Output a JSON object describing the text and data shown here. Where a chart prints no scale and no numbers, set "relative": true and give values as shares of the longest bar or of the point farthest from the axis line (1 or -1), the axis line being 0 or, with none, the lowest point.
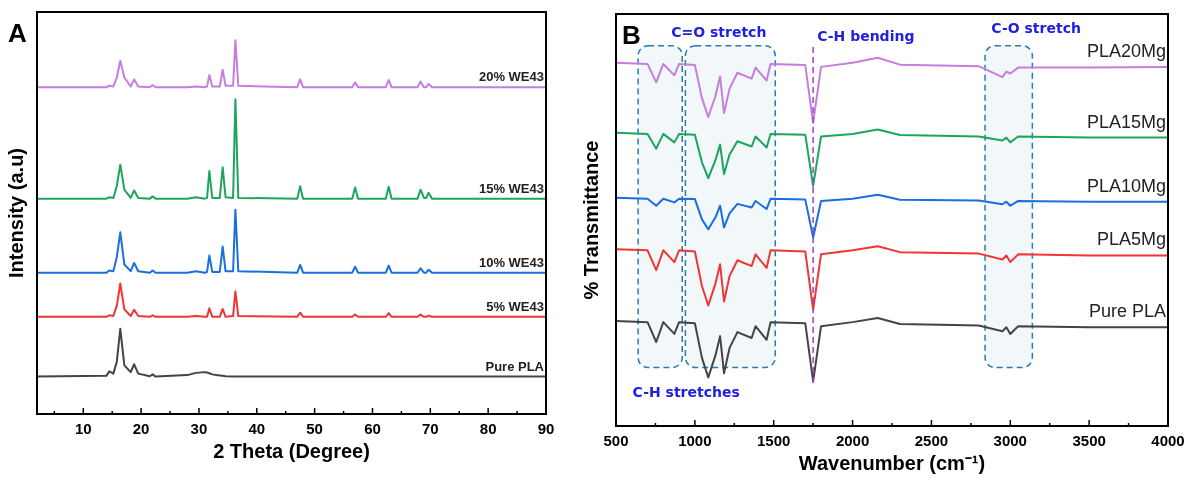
{
  "chart_data": [
    {
      "type": "line",
      "title": "A",
      "xlabel": "2 Theta (Degree)",
      "ylabel": "Intensity (a.u)",
      "relative": true,
      "tick_labels": "x",
      "grid": false,
      "legend": false,
      "xlim": [
        2,
        90
      ],
      "xticks": [
        {
          "value": 5,
          "label": null
        },
        10,
        {
          "value": 15,
          "label": null
        },
        20,
        {
          "value": 25,
          "label": null
        },
        30,
        {
          "value": 35,
          "label": null
        },
        40,
        {
          "value": 45,
          "label": null
        },
        50,
        {
          "value": 55,
          "label": null
        },
        60,
        {
          "value": 65,
          "label": null
        },
        70,
        {
          "value": 75,
          "label": null
        },
        80,
        {
          "value": 85,
          "label": null
        },
        90
      ],
      "x": [
        2,
        14,
        14.5,
        15.2,
        15.8,
        16.4,
        17.1,
        18.2,
        18.8,
        19.5,
        21.5,
        22,
        22.5,
        28,
        29.5,
        31,
        31.4,
        31.8,
        32.3,
        33.6,
        34.1,
        34.6,
        35.9,
        36.3,
        36.8,
        47,
        47.5,
        48,
        56.5,
        57,
        57.5,
        62.3,
        62.8,
        63.3,
        67.8,
        68.3,
        68.9,
        69.3,
        69.7,
        70.3,
        90
      ],
      "series": [
        {
          "name": "20% WE43",
          "color": "#c77dde",
          "values": [
            0.874,
            0.874,
            0.878,
            0.876,
            0.9,
            0.945,
            0.9,
            0.876,
            0.895,
            0.876,
            0.874,
            0.88,
            0.874,
            0.874,
            0.876,
            0.874,
            0.876,
            0.907,
            0.876,
            0.876,
            0.921,
            0.878,
            0.878,
            1,
            0.878,
            0.874,
            0.895,
            0.874,
            0.874,
            0.887,
            0.874,
            0.874,
            0.893,
            0.874,
            0.874,
            0.889,
            0.874,
            0.874,
            0.883,
            0.874,
            0.874
          ]
        },
        {
          "name": "15% WE43",
          "color": "#1ca55c",
          "values": [
            0.576,
            0.576,
            0.58,
            0.578,
            0.61,
            0.667,
            0.6,
            0.578,
            0.598,
            0.578,
            0.576,
            0.582,
            0.576,
            0.576,
            0.58,
            0.576,
            0.578,
            0.65,
            0.578,
            0.578,
            0.66,
            0.58,
            0.578,
            0.842,
            0.578,
            0.576,
            0.609,
            0.576,
            0.576,
            0.606,
            0.576,
            0.576,
            0.608,
            0.576,
            0.576,
            0.6,
            0.578,
            0.578,
            0.592,
            0.576,
            0.576
          ]
        },
        {
          "name": "10% WE43",
          "color": "#1a6ee0",
          "values": [
            0.378,
            0.378,
            0.384,
            0.382,
            0.42,
            0.486,
            0.4,
            0.382,
            0.404,
            0.382,
            0.378,
            0.384,
            0.378,
            0.378,
            0.382,
            0.378,
            0.38,
            0.424,
            0.38,
            0.38,
            0.448,
            0.382,
            0.382,
            0.546,
            0.382,
            0.378,
            0.399,
            0.378,
            0.378,
            0.394,
            0.378,
            0.378,
            0.397,
            0.378,
            0.378,
            0.39,
            0.378,
            0.378,
            0.386,
            0.378,
            0.378
          ]
        },
        {
          "name": "5% WE43",
          "color": "#f03535",
          "values": [
            0.26,
            0.26,
            0.264,
            0.262,
            0.29,
            0.349,
            0.28,
            0.262,
            0.279,
            0.262,
            0.26,
            0.264,
            0.26,
            0.26,
            0.262,
            0.26,
            0.26,
            0.283,
            0.26,
            0.26,
            0.281,
            0.26,
            0.262,
            0.328,
            0.262,
            0.26,
            0.271,
            0.26,
            0.26,
            0.266,
            0.26,
            0.26,
            0.27,
            0.26,
            0.26,
            0.266,
            0.26,
            0.26,
            0.263,
            0.26,
            0.26
          ]
        },
        {
          "name": "Pure PLA",
          "color": "#444444",
          "values": [
            0.1,
            0.102,
            0.114,
            0.108,
            0.14,
            0.228,
            0.13,
            0.112,
            0.133,
            0.108,
            0.101,
            0.106,
            0.1,
            0.104,
            0.11,
            0.112,
            0.111,
            0.109,
            0.106,
            0.103,
            0.102,
            0.101,
            0.1,
            0.1,
            0.1,
            0.1,
            0.1,
            0.1,
            0.1,
            0.1,
            0.1,
            0.1,
            0.1,
            0.1,
            0.1,
            0.1,
            0.1,
            0.1,
            0.1,
            0.1,
            0.1
          ]
        }
      ]
    },
    {
      "type": "line",
      "title": "B",
      "xlabel": "Wavenumber (cm⁻¹)",
      "ylabel": "% Transmittance",
      "relative": true,
      "tick_labels": "x",
      "grid": false,
      "legend": false,
      "xlim": [
        500,
        4000
      ],
      "xticks": [
        500,
        {
          "value": 750,
          "label": null
        },
        1000,
        {
          "value": 1250,
          "label": null
        },
        1500,
        {
          "value": 1750,
          "label": null
        },
        2000,
        {
          "value": 2250,
          "label": null
        },
        2500,
        {
          "value": 2750,
          "label": null
        },
        3000,
        {
          "value": 3250,
          "label": null
        },
        3500,
        {
          "value": 3750,
          "label": null
        },
        4000
      ],
      "x": [
        500,
        700,
        755,
        800,
        870,
        900,
        1000,
        1045,
        1085,
        1130,
        1160,
        1185,
        1220,
        1270,
        1360,
        1385,
        1455,
        1480,
        1700,
        1750,
        1800,
        2000,
        2160,
        2300,
        2800,
        2950,
        2975,
        3000,
        3050,
        3500,
        4000
      ],
      "series": [
        {
          "name": "PLA20Mg",
          "color": "#c77dde",
          "values": [
            0.986,
            0.983,
            0.933,
            0.983,
            0.952,
            0.983,
            0.98,
            0.89,
            0.839,
            0.895,
            0.949,
            0.85,
            0.916,
            0.959,
            0.943,
            0.973,
            0.938,
            0.983,
            0.98,
            0.823,
            0.975,
            0.986,
            1,
            0.981,
            0.977,
            0.947,
            0.962,
            0.957,
            0.973,
            0.973,
            0.975
          ]
        },
        {
          "name": "PLA15Mg",
          "color": "#1ca55c",
          "values": [
            0.796,
            0.793,
            0.753,
            0.793,
            0.77,
            0.793,
            0.791,
            0.716,
            0.673,
            0.721,
            0.764,
            0.684,
            0.737,
            0.773,
            0.759,
            0.786,
            0.756,
            0.793,
            0.791,
            0.652,
            0.786,
            0.793,
            0.805,
            0.79,
            0.786,
            0.775,
            0.783,
            0.77,
            0.786,
            0.783,
            0.783
          ]
        },
        {
          "name": "PLA10Mg",
          "color": "#1a6ee0",
          "values": [
            0.62,
            0.617,
            0.598,
            0.617,
            0.607,
            0.617,
            0.616,
            0.561,
            0.534,
            0.566,
            0.598,
            0.539,
            0.577,
            0.603,
            0.593,
            0.611,
            0.589,
            0.617,
            0.615,
            0.512,
            0.611,
            0.617,
            0.628,
            0.614,
            0.612,
            0.602,
            0.609,
            0.598,
            0.611,
            0.609,
            0.609
          ]
        },
        {
          "name": "PLA5Mg",
          "color": "#f03535",
          "values": [
            0.48,
            0.477,
            0.423,
            0.477,
            0.445,
            0.477,
            0.474,
            0.38,
            0.327,
            0.386,
            0.439,
            0.338,
            0.407,
            0.45,
            0.434,
            0.466,
            0.429,
            0.477,
            0.474,
            0.316,
            0.466,
            0.477,
            0.488,
            0.472,
            0.468,
            0.452,
            0.463,
            0.445,
            0.466,
            0.463,
            0.463
          ]
        },
        {
          "name": "Pure PLA",
          "color": "#444444",
          "values": [
            0.285,
            0.282,
            0.228,
            0.282,
            0.25,
            0.282,
            0.279,
            0.185,
            0.132,
            0.191,
            0.244,
            0.143,
            0.212,
            0.255,
            0.239,
            0.271,
            0.234,
            0.282,
            0.279,
            0.121,
            0.271,
            0.282,
            0.293,
            0.277,
            0.273,
            0.257,
            0.268,
            0.25,
            0.271,
            0.268,
            0.268
          ]
        }
      ],
      "ref_lines": [
        {
          "axis": "x",
          "value": 1750,
          "label": "C-H bending",
          "color": "#a040c8",
          "line_style": "dashed"
        }
      ],
      "bands": [
        {
          "axis": "x",
          "from": 640,
          "to": 920,
          "color": "#2a7ab0"
        },
        {
          "axis": "x",
          "from": 940,
          "to": 1510,
          "color": "#2a7ab0"
        },
        {
          "axis": "x",
          "from": 2840,
          "to": 3140,
          "color": "#2a7ab0"
        }
      ],
      "annotations": [
        "C=O stretch",
        "C-O stretch",
        "C-H stretches"
      ]
    }
  ]
}
